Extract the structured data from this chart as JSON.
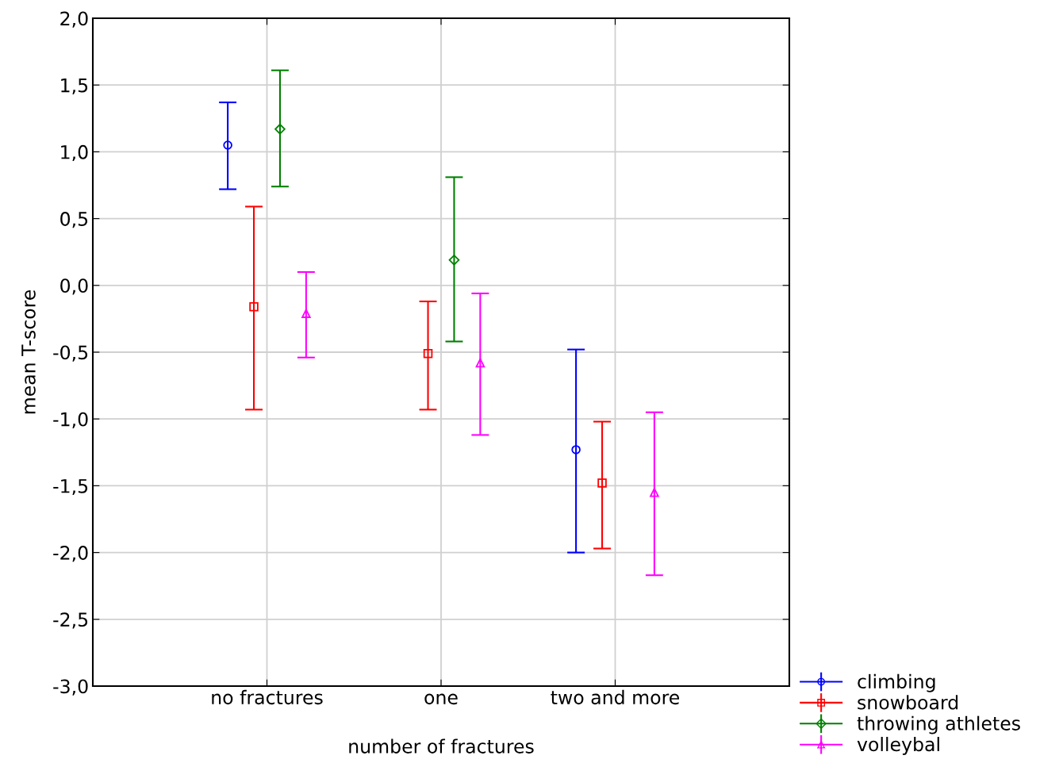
{
  "chart_data": {
    "type": "scatter",
    "xlabel": "number of fractures",
    "ylabel": "mean T-score",
    "categories": [
      "no fractures",
      "one",
      "two and more"
    ],
    "series": [
      {
        "name": "climbing",
        "color": "#0000ff",
        "marker": "circle",
        "values": [
          1.05,
          null,
          -1.23
        ],
        "errors": [
          [
            0.72,
            1.37
          ],
          null,
          [
            -2.0,
            -0.48
          ]
        ]
      },
      {
        "name": "snowboard",
        "color": "#ff0000",
        "marker": "square",
        "values": [
          -0.16,
          -0.51,
          -1.48
        ],
        "errors": [
          [
            -0.93,
            0.59
          ],
          [
            -0.93,
            -0.12
          ],
          [
            -1.97,
            -1.02
          ]
        ]
      },
      {
        "name": "throwing athletes",
        "color": "#008000",
        "marker": "diamond",
        "values": [
          1.17,
          0.19,
          null
        ],
        "errors": [
          [
            0.74,
            1.61
          ],
          [
            -0.42,
            0.81
          ],
          null
        ]
      },
      {
        "name": "volleybal",
        "color": "#ff00ff",
        "marker": "triangle",
        "values": [
          -0.21,
          -0.58,
          -1.55
        ],
        "errors": [
          [
            -0.54,
            0.1
          ],
          [
            -1.12,
            -0.06
          ],
          [
            -2.17,
            -0.95
          ]
        ]
      }
    ],
    "ylim": [
      -3.0,
      2.0
    ],
    "yticks": [
      {
        "value": -3.0,
        "label": "-3,0"
      },
      {
        "value": -2.5,
        "label": "-2,5"
      },
      {
        "value": -2.0,
        "label": "-2,0"
      },
      {
        "value": -1.5,
        "label": "-1,5"
      },
      {
        "value": -1.0,
        "label": "-1,0"
      },
      {
        "value": -0.5,
        "label": "-0,5"
      },
      {
        "value": 0.0,
        "label": "0,0"
      },
      {
        "value": 0.5,
        "label": "0,5"
      },
      {
        "value": 1.0,
        "label": "1,0"
      },
      {
        "value": 1.5,
        "label": "1,5"
      },
      {
        "value": 2.0,
        "label": "2,0"
      }
    ],
    "grid": true,
    "legend": "bottom right"
  }
}
